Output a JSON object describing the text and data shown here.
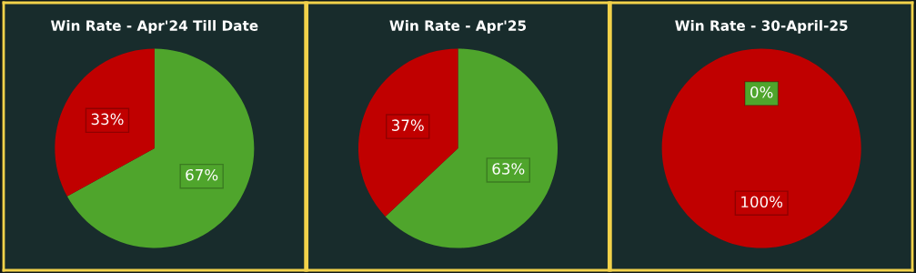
{
  "chart_data": [
    {
      "type": "pie",
      "title": "Win Rate - Apr'24 Till Date",
      "categories": [
        null,
        null
      ],
      "values": [
        67,
        33
      ],
      "colors": [
        "#4fa52c",
        "#c00000"
      ],
      "value_labels": [
        "67%",
        "33%"
      ]
    },
    {
      "type": "pie",
      "title": "Win Rate - Apr'25",
      "categories": [
        null,
        null
      ],
      "values": [
        63,
        37
      ],
      "colors": [
        "#4fa52c",
        "#c00000"
      ],
      "value_labels": [
        "63%",
        "37%"
      ]
    },
    {
      "type": "pie",
      "title": "Win Rate - 30-April-25",
      "categories": [
        null,
        null
      ],
      "values": [
        0,
        100
      ],
      "colors": [
        "#4fa52c",
        "#c00000"
      ],
      "value_labels": [
        "0%",
        "100%"
      ]
    }
  ]
}
